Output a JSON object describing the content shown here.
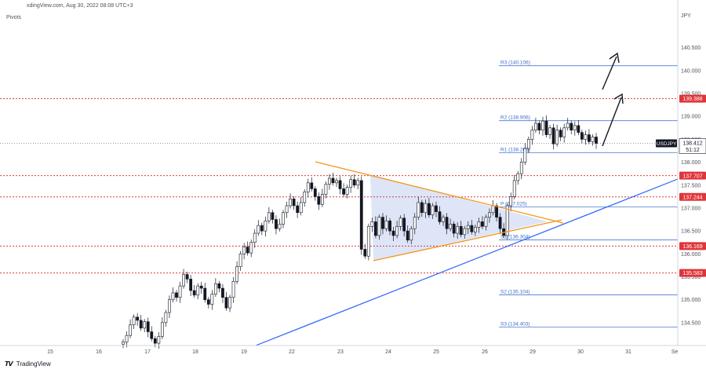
{
  "header": {
    "source_line": "xdingView.com, Aug 30, 2022 08:08 UTC+3",
    "indicator_name": "Pivots"
  },
  "footer": {
    "brand": "TradingView"
  },
  "chart_data": {
    "type": "candlestick",
    "symbol": "USDJPY",
    "currency_label": "JPY",
    "last_price": 138.412,
    "countdown": "51:12",
    "x_ticks": [
      "15",
      "16",
      "17",
      "18",
      "19",
      "22",
      "23",
      "24",
      "25",
      "26",
      "29",
      "30",
      "31",
      "Se"
    ],
    "y_ticks": [
      134.5,
      135.0,
      135.5,
      136.0,
      136.5,
      137.0,
      137.5,
      138.0,
      138.5,
      139.0,
      139.5,
      140.0,
      140.5
    ],
    "y_tick_labels": [
      "134.500",
      "135.000",
      "135.500",
      "136.000",
      "136.500",
      "137.000",
      "137.500",
      "138.000",
      "138.500",
      "139.000",
      "139.500",
      "140.000",
      "140.500"
    ],
    "ylim": [
      134.0,
      141.3
    ],
    "pivot_levels": [
      {
        "label": "R3 (140.106)",
        "value": 140.106
      },
      {
        "label": "R2 (138.906)",
        "value": 138.906
      },
      {
        "label": "R1 (138.205)",
        "value": 138.205
      },
      {
        "label": "P (137.025)",
        "value": 137.025
      },
      {
        "label": "S1 (136.304)",
        "value": 136.304
      },
      {
        "label": "S2 (135.104)",
        "value": 135.104
      },
      {
        "label": "S3 (134.403)",
        "value": 134.403
      }
    ],
    "horizontal_levels": [
      {
        "label": "139.388",
        "value": 139.388
      },
      {
        "label": "137.707",
        "value": 137.707
      },
      {
        "label": "137.244",
        "value": 137.244
      },
      {
        "label": "136.169",
        "value": 136.169
      },
      {
        "label": "135.583",
        "value": 135.583
      }
    ],
    "closes": [
      134.08,
      134.22,
      134.45,
      134.62,
      134.55,
      134.38,
      134.52,
      134.3,
      134.15,
      134.05,
      134.2,
      134.5,
      134.72,
      135.0,
      135.15,
      135.05,
      135.3,
      135.55,
      135.45,
      135.2,
      135.1,
      135.3,
      135.25,
      135.0,
      134.9,
      135.12,
      135.35,
      135.25,
      135.05,
      134.82,
      135.05,
      135.4,
      135.72,
      136.0,
      136.15,
      136.02,
      136.25,
      136.45,
      136.62,
      136.5,
      136.72,
      136.9,
      136.75,
      136.55,
      136.65,
      136.9,
      137.05,
      137.2,
      137.05,
      136.9,
      137.12,
      137.35,
      137.55,
      137.42,
      137.25,
      137.08,
      137.3,
      137.52,
      137.65,
      137.55,
      137.6,
      137.42,
      137.3,
      137.45,
      137.62,
      137.5,
      137.6,
      136.1,
      135.95,
      136.6,
      136.7,
      136.4,
      136.8,
      136.55,
      136.72,
      136.5,
      136.4,
      136.6,
      136.78,
      136.5,
      136.3,
      136.55,
      136.8,
      137.12,
      136.9,
      137.1,
      136.85,
      137.05,
      136.92,
      136.7,
      136.8,
      136.55,
      136.65,
      136.45,
      136.6,
      136.42,
      136.55,
      136.62,
      136.48,
      136.58,
      136.7,
      136.6,
      136.8,
      136.9,
      137.05,
      136.8,
      136.55,
      136.4,
      137.05,
      137.25,
      137.6,
      137.75,
      138.0,
      138.3,
      138.5,
      138.7,
      138.85,
      138.7,
      138.9,
      138.6,
      138.75,
      138.4,
      138.7,
      138.55,
      138.75,
      138.85,
      138.7,
      138.8,
      138.65,
      138.5,
      138.6,
      138.45,
      138.55,
      138.412
    ]
  }
}
